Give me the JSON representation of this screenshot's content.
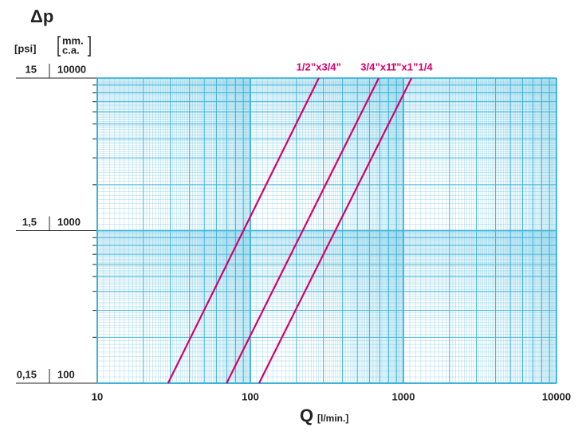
{
  "chart_data": {
    "type": "line",
    "title": "Δp",
    "y2label": "[psi]",
    "ylabel": [
      "mm.",
      "c.a."
    ],
    "xlabel": "Q",
    "xlabel_unit": "[l/min.]",
    "xscale": "log",
    "yscale": "log",
    "grid": true,
    "xlim": [
      10,
      10000
    ],
    "xticks": [
      10,
      100,
      1000,
      10000
    ],
    "ylim": [
      100,
      10000
    ],
    "yticks": [
      100,
      1000,
      10000
    ],
    "y2lim": [
      0.15,
      15
    ],
    "y2ticks": [
      {
        "value": 0.15,
        "label": "0,15"
      },
      {
        "value": 1.5,
        "label": "1,5"
      },
      {
        "value": 15,
        "label": "15"
      }
    ],
    "series": [
      {
        "name": "1/2”x3/4”",
        "color": "#d6006e",
        "x": [
          29,
          280
        ],
        "values": [
          100,
          10000
        ]
      },
      {
        "name": "3/4”x1”",
        "color": "#d6006e",
        "x": [
          70,
          690
        ],
        "values": [
          100,
          10000
        ]
      },
      {
        "name": "1”x1”1/4",
        "color": "#d6006e",
        "x": [
          114,
          1130
        ],
        "values": [
          100,
          10000
        ]
      }
    ]
  }
}
